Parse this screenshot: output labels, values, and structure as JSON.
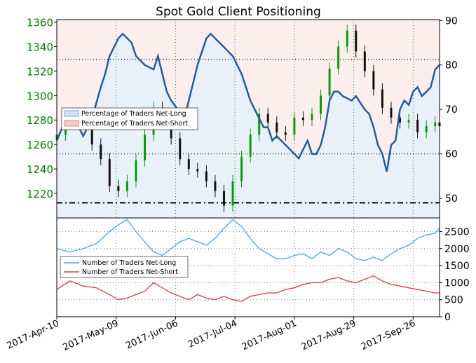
{
  "chart_data": [
    {
      "type": "line",
      "title": "Spot Gold Client Positioning",
      "x_tick_labels": [
        "2017-Apr-10",
        "2017-May-09",
        "2017-Jun-06",
        "2017-Jul-04",
        "2017-Aug-01",
        "2017-Aug-29",
        "2017-Sep-26"
      ],
      "left_axis": {
        "ticks": [
          1220,
          1240,
          1260,
          1280,
          1300,
          1320,
          1340,
          1360
        ],
        "ylim": [
          1200,
          1362
        ],
        "color": "#008000"
      },
      "right_axis": {
        "ticks": [
          50,
          60,
          70,
          80,
          90
        ],
        "ylim": [
          45.6,
          90.2
        ]
      },
      "reference_lines": [
        {
          "axis": "right",
          "value": 81.3,
          "style": "dotted"
        },
        {
          "axis": "right",
          "value": 60.0,
          "style": "dotted"
        },
        {
          "axis": "right",
          "value": 49.0,
          "style": "dashdot"
        }
      ],
      "legend": {
        "placement": "left-middle",
        "entries": [
          "Percentage of Traders Net-Long",
          "Percentage of Traders Net-Short"
        ]
      },
      "series": [
        {
          "name": "Percentage of Traders Net-Long",
          "axis": "right",
          "color": "#1f5fa0",
          "x": [
            0,
            6,
            12,
            16,
            20,
            22,
            24,
            26,
            28,
            30,
            34,
            36,
            38,
            40,
            44,
            46,
            48,
            50,
            52,
            55,
            58,
            60,
            62,
            64,
            66,
            68,
            70,
            72,
            74,
            76,
            78,
            80,
            82,
            84,
            86,
            88,
            90,
            92,
            94,
            96,
            98,
            100,
            104,
            108,
            110,
            112,
            114,
            116,
            118,
            120,
            122,
            124,
            126,
            128,
            130,
            134,
            136,
            140,
            142,
            144,
            146,
            148,
            150,
            152,
            154,
            156,
            158,
            160,
            162,
            164,
            166,
            168,
            170,
            172,
            174
          ],
          "values": [
            63,
            70,
            64,
            68,
            75,
            78,
            82,
            84,
            86,
            87,
            85,
            82,
            81,
            80,
            79,
            82,
            78,
            74,
            72,
            70,
            68,
            72,
            76,
            80,
            83,
            86,
            87,
            86,
            85,
            84,
            83,
            82,
            80,
            78,
            75,
            72,
            70,
            68,
            66,
            66,
            63,
            64,
            62,
            60,
            59,
            61,
            63,
            60,
            60,
            62,
            66,
            72,
            74,
            74,
            73,
            72,
            73,
            70,
            69,
            66,
            62,
            60,
            56,
            62,
            63,
            70,
            72,
            71,
            74,
            75,
            73,
            74,
            75,
            79,
            80
          ]
        },
        {
          "name": "",
          "axis": "left",
          "type": "candlestick",
          "color": "#006400",
          "x": [
            0,
            4,
            8,
            12,
            16,
            20,
            24,
            28,
            32,
            36,
            40,
            44,
            48,
            52,
            56,
            60,
            64,
            68,
            72,
            76,
            80,
            84,
            88,
            92,
            96,
            100,
            104,
            108,
            112,
            116,
            120,
            124,
            128,
            132,
            136,
            140,
            144,
            148,
            152,
            156,
            160,
            164,
            168,
            172,
            174
          ],
          "values": [
            1268,
            1280,
            1282,
            1280,
            1260,
            1248,
            1226,
            1222,
            1230,
            1247,
            1268,
            1290,
            1278,
            1265,
            1248,
            1240,
            1238,
            1230,
            1222,
            1210,
            1230,
            1250,
            1268,
            1285,
            1278,
            1270,
            1268,
            1282,
            1280,
            1285,
            1300,
            1322,
            1340,
            1353,
            1336,
            1320,
            1305,
            1290,
            1282,
            1278,
            1280,
            1270,
            1275,
            1278,
            1275
          ]
        }
      ]
    },
    {
      "type": "line",
      "x_tick_labels": [
        "2017-Apr-10",
        "2017-May-09",
        "2017-Jun-06",
        "2017-Jul-04",
        "2017-Aug-01",
        "2017-Aug-29",
        "2017-Sep-26"
      ],
      "right_axis": {
        "ticks": [
          0,
          500,
          1000,
          1500,
          2000,
          2500
        ],
        "ylim": [
          0,
          2900
        ]
      },
      "legend": {
        "placement": "left-middle",
        "entries": [
          "Number of Traders Net-Long",
          "Number of Traders Net-Short"
        ]
      },
      "series": [
        {
          "name": "Number of Traders Net-Long",
          "color": "#42a5f5",
          "x": [
            0,
            6,
            12,
            18,
            24,
            28,
            32,
            36,
            40,
            44,
            48,
            52,
            56,
            60,
            64,
            68,
            72,
            76,
            80,
            84,
            88,
            92,
            96,
            100,
            104,
            108,
            112,
            116,
            120,
            124,
            128,
            132,
            136,
            140,
            144,
            148,
            152,
            156,
            160,
            164,
            168,
            172,
            174
          ],
          "values": [
            2000,
            1900,
            2000,
            2150,
            2500,
            2700,
            2850,
            2500,
            2200,
            1900,
            1800,
            2000,
            2200,
            2300,
            2200,
            2100,
            2300,
            2600,
            2850,
            2650,
            2300,
            2000,
            1850,
            1700,
            1700,
            1800,
            1850,
            1700,
            1900,
            1800,
            2000,
            1900,
            1700,
            1650,
            1750,
            1650,
            1850,
            2000,
            2100,
            2300,
            2400,
            2450,
            2600
          ]
        },
        {
          "name": "Number of Traders Net-Short",
          "color": "#e53935",
          "x": [
            0,
            6,
            12,
            18,
            24,
            28,
            32,
            36,
            40,
            44,
            48,
            52,
            56,
            60,
            64,
            68,
            72,
            76,
            80,
            84,
            88,
            92,
            96,
            100,
            104,
            108,
            112,
            116,
            120,
            124,
            128,
            132,
            136,
            140,
            144,
            148,
            152,
            156,
            160,
            164,
            168,
            172,
            174
          ],
          "values": [
            800,
            1050,
            900,
            850,
            650,
            500,
            550,
            650,
            750,
            1000,
            850,
            700,
            600,
            500,
            650,
            550,
            500,
            600,
            500,
            450,
            600,
            650,
            700,
            700,
            800,
            850,
            950,
            1000,
            1000,
            1100,
            1150,
            1050,
            1000,
            1100,
            1200,
            1050,
            950,
            900,
            850,
            800,
            750,
            700,
            700
          ]
        }
      ]
    }
  ]
}
